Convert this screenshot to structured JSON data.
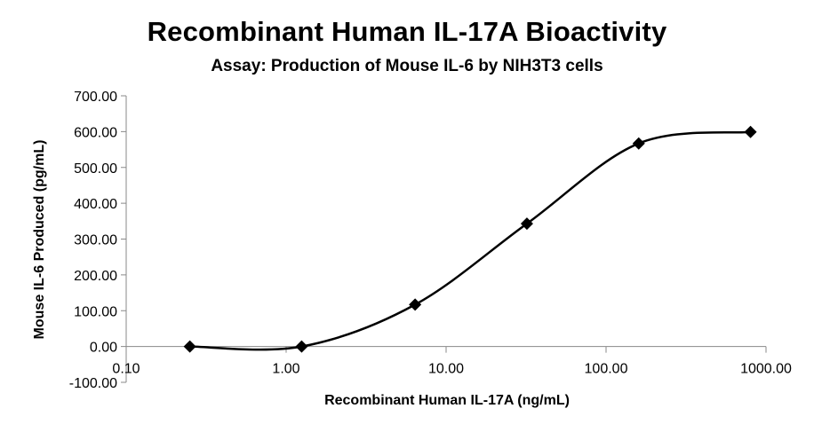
{
  "chart_data": {
    "type": "scatter",
    "title": "Recombinant Human IL-17A Bioactivity",
    "subtitle": "Assay: Production of Mouse IL-6 by NIH3T3 cells",
    "xlabel": "Recombinant Human IL-17A (ng/mL)",
    "ylabel": "Mouse IL-6 Produced (pg/mL)",
    "x_scale": "log",
    "xlim": [
      0.1,
      1000
    ],
    "ylim": [
      -100,
      700
    ],
    "x_ticks": [
      0.1,
      1,
      10,
      100,
      1000
    ],
    "x_tick_labels": [
      "0.10",
      "1.00",
      "10.00",
      "100.00",
      "1000.00"
    ],
    "y_ticks": [
      -100,
      0,
      100,
      200,
      300,
      400,
      500,
      600,
      700
    ],
    "y_tick_labels": [
      "-100.00",
      "0.00",
      "100.00",
      "200.00",
      "300.00",
      "400.00",
      "500.00",
      "600.00",
      "700.00"
    ],
    "grid": false,
    "legend": "none",
    "marker": "diamond",
    "line": "smooth",
    "color": "#000000",
    "series": [
      {
        "x": [
          0.25,
          1.25,
          6.4,
          32,
          160,
          800
        ],
        "y": [
          0,
          0,
          117,
          343,
          567,
          599
        ]
      }
    ]
  }
}
